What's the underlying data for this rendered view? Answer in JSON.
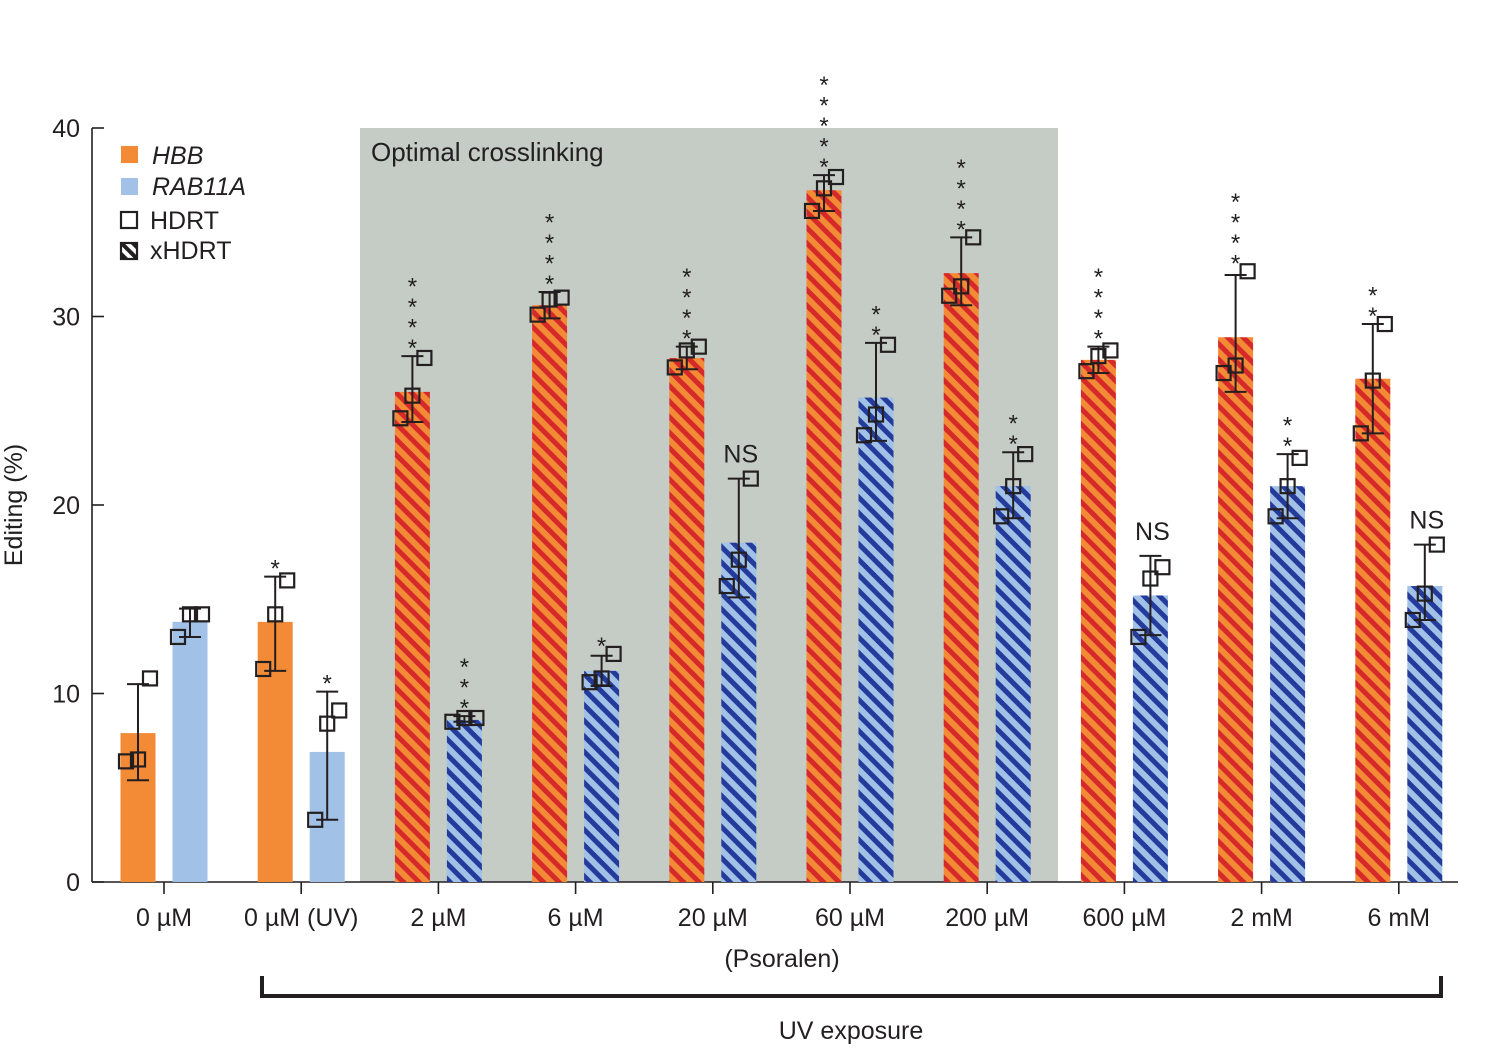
{
  "chart_data": {
    "type": "bar",
    "ylabel": "Editing (%)",
    "xlabel": "(Psoralen)",
    "ylim": [
      0,
      40
    ],
    "yticks": [
      0,
      10,
      20,
      30,
      40
    ],
    "categories": [
      "0 µM",
      "0 µM (UV)",
      "2 µM",
      "6 µM",
      "20 µM",
      "60 µM",
      "200 µM",
      "600 µM",
      "2 mM",
      "6 mM"
    ],
    "legend": {
      "HBB": "HBB",
      "RAB11A": "RAB11A",
      "HDRT": "HDRT",
      "xHDRT": "xHDRT"
    },
    "region_label": "Optimal crosslinking",
    "bracket_label": "UV exposure",
    "colors": {
      "hbb": "#f38a36",
      "hbb_hatch": "#d62a2a",
      "rab": "#a1c1e6",
      "rab_hatch": "#243b9c",
      "region": "#c5ccc6"
    },
    "series": [
      {
        "name": "HBB",
        "values": [
          7.9,
          13.8,
          26.0,
          30.6,
          27.8,
          36.7,
          32.3,
          27.7,
          28.9,
          26.7
        ],
        "hatched": [
          false,
          false,
          true,
          true,
          true,
          true,
          true,
          true,
          true,
          true
        ],
        "error": [
          [
            5.4,
            10.5
          ],
          [
            11.2,
            16.2
          ],
          [
            24.4,
            27.9
          ],
          [
            29.9,
            31.3
          ],
          [
            27.2,
            28.4
          ],
          [
            35.6,
            37.5
          ],
          [
            30.6,
            34.2
          ],
          [
            27.0,
            28.4
          ],
          [
            26.0,
            32.2
          ],
          [
            23.8,
            29.6
          ]
        ],
        "points": [
          [
            6.4,
            6.5,
            10.8
          ],
          [
            11.3,
            14.2,
            16.0
          ],
          [
            24.6,
            25.8,
            27.8
          ],
          [
            30.1,
            30.9,
            31.0
          ],
          [
            27.3,
            28.2,
            28.4
          ],
          [
            35.6,
            36.8,
            37.4
          ],
          [
            31.1,
            31.6,
            34.2
          ],
          [
            27.1,
            27.9,
            28.2
          ],
          [
            27.0,
            27.4,
            32.4
          ],
          [
            23.8,
            26.6,
            29.6
          ]
        ],
        "significance": [
          "",
          "*",
          "****",
          "****",
          "****",
          "*****",
          "****",
          "****",
          "****",
          "**"
        ]
      },
      {
        "name": "RAB11A",
        "values": [
          13.8,
          6.9,
          8.6,
          11.2,
          18.0,
          25.7,
          21.0,
          15.2,
          21.0,
          15.7
        ],
        "hatched": [
          false,
          false,
          true,
          true,
          true,
          true,
          true,
          true,
          true,
          true
        ],
        "error": [
          [
            13.0,
            14.5
          ],
          [
            3.3,
            10.1
          ],
          [
            8.5,
            8.8
          ],
          [
            10.4,
            12.0
          ],
          [
            15.1,
            21.4
          ],
          [
            23.4,
            28.6
          ],
          [
            19.3,
            22.8
          ],
          [
            13.1,
            17.3
          ],
          [
            19.3,
            22.7
          ],
          [
            13.9,
            17.9
          ]
        ],
        "points": [
          [
            13.0,
            14.2,
            14.2
          ],
          [
            3.3,
            8.4,
            9.1
          ],
          [
            8.5,
            8.7,
            8.7
          ],
          [
            10.6,
            10.8,
            12.1
          ],
          [
            15.7,
            17.1,
            21.4
          ],
          [
            23.7,
            24.8,
            28.5
          ],
          [
            19.4,
            21.0,
            22.7
          ],
          [
            13.0,
            16.1,
            16.7
          ],
          [
            19.4,
            21.0,
            22.5
          ],
          [
            13.9,
            15.3,
            17.9
          ]
        ],
        "significance": [
          "",
          "*",
          "***",
          "*",
          "NS",
          "**",
          "**",
          "NS",
          "**",
          "NS"
        ]
      }
    ]
  }
}
